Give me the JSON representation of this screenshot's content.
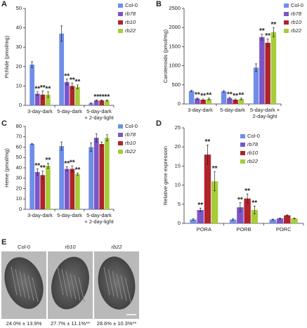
{
  "chart_data": [
    {
      "type": "bar",
      "panel": "A",
      "ylabel": "Pchlide (pmol/mg)",
      "categories": [
        "3-day-dark",
        "5-day-dark",
        "5-day-dark + 2-day-light"
      ],
      "ylim": [
        0,
        50
      ],
      "yticks": [
        0,
        10,
        20,
        30,
        40,
        50
      ],
      "series": [
        {
          "name": "Col-0",
          "color": "#6f8ee8",
          "values": [
            21,
            37,
            1
          ],
          "errors": [
            1.5,
            4,
            0.3
          ],
          "stars": [
            null,
            null,
            null
          ]
        },
        {
          "name": "rb78",
          "color": "#7b55c8",
          "values": [
            6,
            12,
            2.5
          ],
          "errors": [
            1,
            1.5,
            0.3
          ],
          "stars": [
            "**",
            "**",
            "**"
          ]
        },
        {
          "name": "rb10",
          "color": "#b0232b",
          "values": [
            5.5,
            10,
            2.5
          ],
          "errors": [
            2,
            1.5,
            0.3
          ],
          "stars": [
            "**",
            "**",
            "**"
          ]
        },
        {
          "name": "rb22",
          "color": "#a6cc3a",
          "values": [
            5.5,
            9.5,
            2.5
          ],
          "errors": [
            1.5,
            1,
            0.3
          ],
          "stars": [
            "**",
            "**",
            "**"
          ]
        }
      ]
    },
    {
      "type": "bar",
      "panel": "B",
      "ylabel": "Carotenoids (pmol/mg)",
      "categories": [
        "3-day-dark",
        "5-day-dark",
        "5-day-dark + 2-day-light"
      ],
      "ylim": [
        0,
        2500
      ],
      "yticks": [
        0,
        500,
        1000,
        1500,
        2000,
        2500
      ],
      "series": [
        {
          "name": "Col-0",
          "color": "#6f8ee8",
          "values": [
            340,
            330,
            950
          ],
          "errors": [
            20,
            20,
            100
          ],
          "stars": [
            null,
            null,
            null
          ]
        },
        {
          "name": "rb78",
          "color": "#7b55c8",
          "values": [
            140,
            150,
            1750
          ],
          "errors": [
            20,
            20,
            80
          ],
          "stars": [
            "**",
            "**",
            "**"
          ]
        },
        {
          "name": "rb10",
          "color": "#b0232b",
          "values": [
            110,
            110,
            1600
          ],
          "errors": [
            20,
            20,
            100
          ],
          "stars": [
            "**",
            "**",
            "**"
          ]
        },
        {
          "name": "rb22",
          "color": "#a6cc3a",
          "values": [
            130,
            130,
            1880
          ],
          "errors": [
            20,
            20,
            120
          ],
          "stars": [
            "**",
            "**",
            "**"
          ]
        }
      ]
    },
    {
      "type": "bar",
      "panel": "C",
      "ylabel": "Heme (pmol/mg)",
      "categories": [
        "3-day-dark",
        "5-day-dark",
        "5-day-dark + 2-day-light"
      ],
      "ylim": [
        0,
        80
      ],
      "yticks": [
        0,
        10,
        20,
        30,
        40,
        50,
        60,
        70,
        80
      ],
      "series": [
        {
          "name": "Col-0",
          "color": "#6f8ee8",
          "values": [
            63,
            61,
            60
          ],
          "errors": [
            0.5,
            4,
            4
          ],
          "stars": [
            null,
            null,
            null
          ]
        },
        {
          "name": "rb78",
          "color": "#7b55c8",
          "values": [
            36,
            39,
            69
          ],
          "errors": [
            3,
            2,
            4
          ],
          "stars": [
            "**",
            "**",
            null
          ]
        },
        {
          "name": "rb10",
          "color": "#b0232b",
          "values": [
            33,
            39,
            63
          ],
          "errors": [
            4,
            3,
            2
          ],
          "stars": [
            "**",
            "**",
            null
          ]
        },
        {
          "name": "rb22",
          "color": "#a6cc3a",
          "values": [
            42,
            34,
            69
          ],
          "errors": [
            2.5,
            1,
            3
          ],
          "stars": [
            "**",
            "**",
            null
          ]
        }
      ]
    },
    {
      "type": "bar",
      "panel": "D",
      "ylabel": "Relative gene expression",
      "categories": [
        "PORA",
        "PORB",
        "PORC"
      ],
      "ylim": [
        0,
        25
      ],
      "yticks": [
        0,
        5,
        10,
        15,
        20,
        25
      ],
      "series": [
        {
          "name": "Col-0",
          "color": "#6f8ee8",
          "values": [
            1,
            1,
            1
          ],
          "errors": [
            0.2,
            0.2,
            0.1
          ],
          "stars": [
            null,
            null,
            null
          ]
        },
        {
          "name": "rb78",
          "color": "#7b55c8",
          "values": [
            3.5,
            4.2,
            1.3
          ],
          "errors": [
            0.5,
            1.2,
            0.1
          ],
          "stars": [
            "**",
            "**",
            null
          ]
        },
        {
          "name": "rb10",
          "color": "#b0232b",
          "values": [
            18,
            6.5,
            2.1
          ],
          "errors": [
            2.5,
            1.2,
            0.1
          ],
          "stars": [
            "**",
            "**",
            null
          ]
        },
        {
          "name": "rb22",
          "color": "#a6cc3a",
          "values": [
            11,
            3.5,
            1.3
          ],
          "errors": [
            2.5,
            1,
            0.1
          ],
          "stars": [
            "**",
            "**",
            null
          ]
        }
      ]
    }
  ],
  "micrographs": {
    "panel": "E",
    "images": [
      {
        "title": "Col-0",
        "caption": "24.0% ± 13.9%"
      },
      {
        "title": "rb10",
        "caption": "27.7% ± 11.1%**"
      },
      {
        "title": "rb22",
        "caption": "28.6% ± 10.3%**"
      }
    ]
  }
}
